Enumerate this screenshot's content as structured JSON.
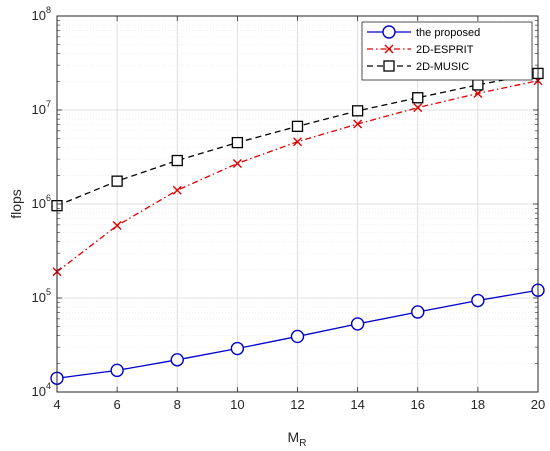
{
  "chart_data": {
    "type": "line",
    "xlabel": {
      "main": "M",
      "sub": "R"
    },
    "ylabel": "flops",
    "x": [
      4,
      6,
      8,
      10,
      12,
      14,
      16,
      18,
      20
    ],
    "xticks": [
      "4",
      "6",
      "8",
      "10",
      "12",
      "14",
      "16",
      "18",
      "20"
    ],
    "xlim": [
      4,
      20
    ],
    "ylim": [
      10000,
      100000000
    ],
    "yscale": "log",
    "yticks": [
      {
        "base": "10",
        "exp": "4",
        "value": 10000
      },
      {
        "base": "10",
        "exp": "5",
        "value": 100000
      },
      {
        "base": "10",
        "exp": "6",
        "value": 1000000
      },
      {
        "base": "10",
        "exp": "7",
        "value": 10000000
      },
      {
        "base": "10",
        "exp": "8",
        "value": 100000000
      }
    ],
    "grid": true,
    "minor_grid": true,
    "legend_position": "top-right",
    "series": [
      {
        "name": "the proposed",
        "color": "#0000cc",
        "line": "solid",
        "marker": "circle",
        "values": [
          14000,
          17000,
          22000,
          29000,
          39000,
          53000,
          71000,
          94000,
          121000
        ]
      },
      {
        "name": "2D-ESPRIT",
        "color": "#e00000",
        "line": "dashdot",
        "marker": "x",
        "values": [
          190000,
          590000,
          1400000,
          2700000,
          4600000,
          7100000,
          10600000,
          15000000,
          20500000
        ]
      },
      {
        "name": "2D-MUSIC",
        "color": "#000000",
        "line": "dashed",
        "marker": "square",
        "values": [
          960000,
          1750000,
          2900000,
          4500000,
          6700000,
          9800000,
          13500000,
          18500000,
          24500000
        ]
      }
    ]
  }
}
